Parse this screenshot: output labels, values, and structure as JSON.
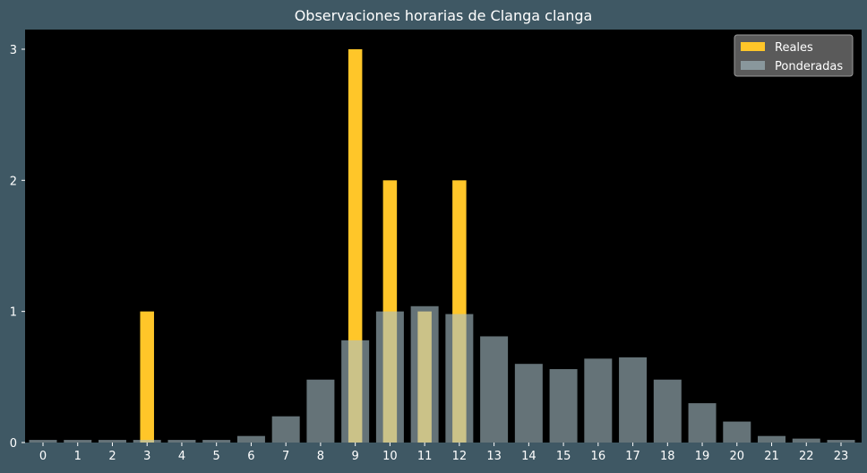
{
  "chart_data": {
    "type": "bar",
    "title": "Observaciones horarias de Clanga clanga",
    "xlabel": "",
    "ylabel": "",
    "categories": [
      "0",
      "1",
      "2",
      "3",
      "4",
      "5",
      "6",
      "7",
      "8",
      "9",
      "10",
      "11",
      "12",
      "13",
      "14",
      "15",
      "16",
      "17",
      "18",
      "19",
      "20",
      "21",
      "22",
      "23"
    ],
    "ylim": [
      0,
      3.15
    ],
    "yticks": [
      "0",
      "1",
      "2",
      "3"
    ],
    "grid": false,
    "legend_position": "top-right",
    "series": [
      {
        "name": "Reales",
        "color": "#ffc629",
        "values": [
          0,
          0,
          0,
          1,
          0,
          0,
          0,
          0,
          0,
          3,
          2,
          1,
          2,
          0,
          0,
          0,
          0,
          0,
          0,
          0,
          0,
          0,
          0,
          0
        ]
      },
      {
        "name": "Ponderadas",
        "color": "#a9c0c8",
        "values": [
          0.02,
          0.02,
          0.02,
          0.02,
          0.02,
          0.02,
          0.05,
          0.2,
          0.48,
          0.78,
          1.0,
          1.04,
          0.98,
          0.81,
          0.6,
          0.56,
          0.64,
          0.65,
          0.48,
          0.3,
          0.16,
          0.05,
          0.03,
          0.02
        ]
      }
    ],
    "colors": {
      "background": "#3f5864",
      "plot_area": "#000000",
      "text": "#ffffff",
      "legend_bg": "#5a5a5a"
    }
  }
}
